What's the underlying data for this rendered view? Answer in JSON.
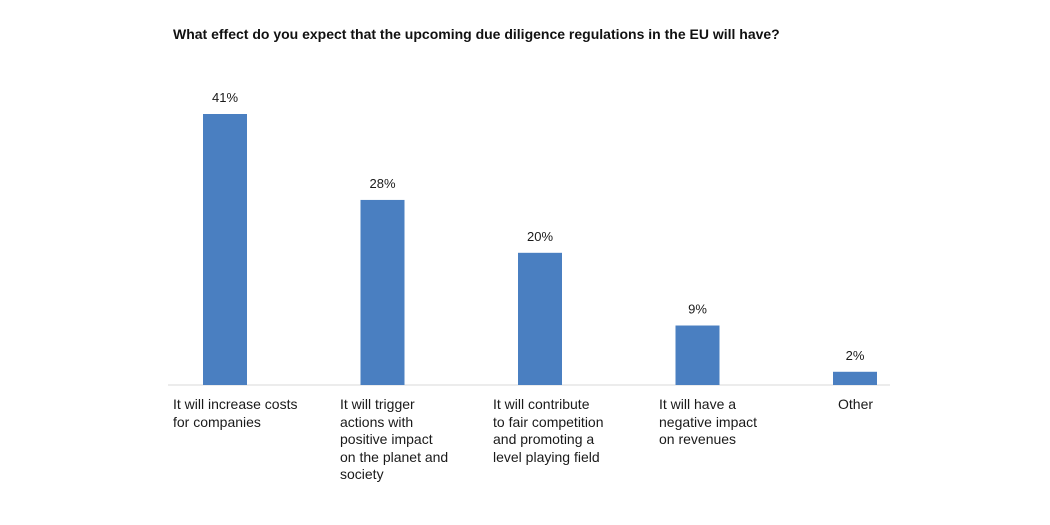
{
  "colors": {
    "bar": "#4a7fc1",
    "axis": "#d9d9d9",
    "text": "#1a1a1a"
  },
  "chart_data": {
    "type": "bar",
    "title": "What effect do you expect that the upcoming due diligence regulations in the EU will have?",
    "categories": [
      "It will increase costs\nfor companies",
      "It will trigger\nactions with\npositive impact\non the planet and\nsociety",
      "It will contribute\nto fair competition\nand promoting a\nlevel playing field",
      "It will have a\nnegative impact\non revenues",
      "Other"
    ],
    "values": [
      41,
      28,
      20,
      9,
      2
    ],
    "data_labels": [
      "41%",
      "28%",
      "20%",
      "9%",
      "2%"
    ],
    "xlabel": "",
    "ylabel": "",
    "ylim": [
      0,
      41
    ],
    "grid": false,
    "legend": "none"
  }
}
